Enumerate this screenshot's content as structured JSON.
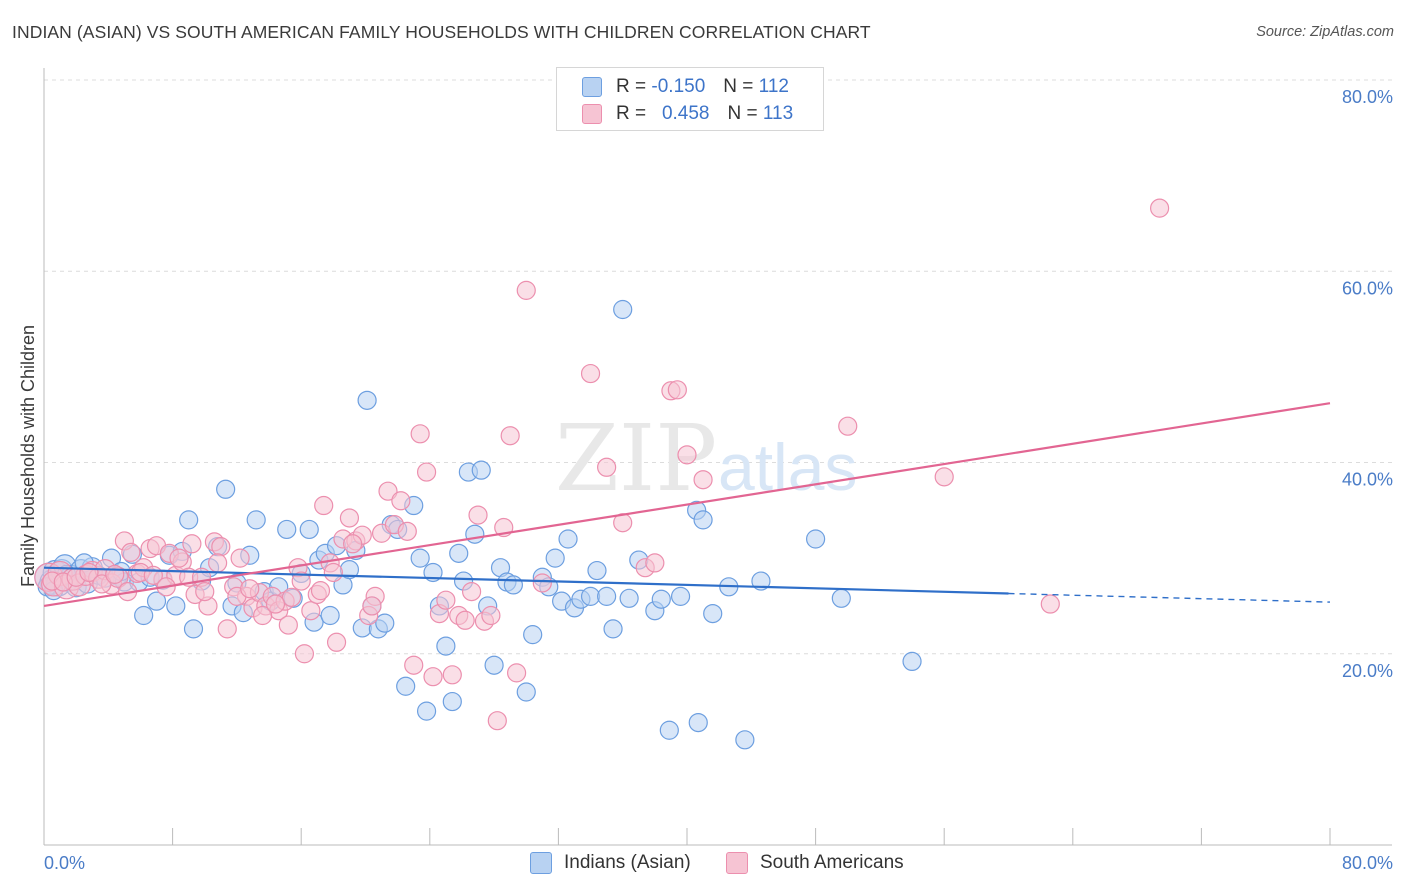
{
  "title": "INDIAN (ASIAN) VS SOUTH AMERICAN FAMILY HOUSEHOLDS WITH CHILDREN CORRELATION CHART",
  "source": "Source: ZipAtlas.com",
  "watermark": "ZIPatlas",
  "legend": {
    "rows": [
      {
        "r_label": "R = ",
        "r_value": "-0.150",
        "n_label": "N = ",
        "n_value": "112"
      },
      {
        "r_label": "R = ",
        "r_value": "0.458",
        "n_label": "N = ",
        "n_value": "113"
      }
    ]
  },
  "bottom_legend": {
    "series1": "Indians (Asian)",
    "series2": "South Americans"
  },
  "colors": {
    "blue_fill": "#b8d2f2",
    "blue_stroke": "#6d9fe0",
    "blue_line": "#2f6fc9",
    "pink_fill": "#f6c4d3",
    "pink_stroke": "#ec8fae",
    "pink_line": "#e26592",
    "tick_text": "#4a7cc7",
    "grid": "#dcdcdc"
  },
  "chart_data": {
    "type": "scatter",
    "xlabel": "",
    "ylabel": "Family Households with Children",
    "xlim": [
      0,
      80
    ],
    "ylim": [
      0,
      80
    ],
    "x_tick_labels": [
      "0.0%",
      "80.0%"
    ],
    "y_tick_labels": [
      "20.0%",
      "40.0%",
      "60.0%",
      "80.0%"
    ],
    "y_ticks": [
      20,
      40,
      60,
      80
    ],
    "grid": "horizontal dashed",
    "series": [
      {
        "name": "Indians (Asian)",
        "color": "#6d9fe0",
        "trend": {
          "x0": 0,
          "y0": 29.0,
          "x1": 60,
          "y1": 26.3,
          "dashed_to": 80,
          "dashed_y": 25.4
        },
        "points": [
          [
            0.3,
            28.0
          ],
          [
            0.5,
            27.5
          ],
          [
            0.7,
            28.5
          ],
          [
            0.9,
            27.3
          ],
          [
            1.1,
            28.7
          ],
          [
            1.3,
            29.2
          ],
          [
            1.5,
            27.6
          ],
          [
            1.7,
            28.2
          ],
          [
            2.0,
            27.0
          ],
          [
            2.3,
            28.8
          ],
          [
            2.7,
            27.4
          ],
          [
            3.0,
            29.0
          ],
          [
            3.4,
            28.2
          ],
          [
            3.8,
            27.9
          ],
          [
            4.2,
            30.0
          ],
          [
            4.6,
            28.1
          ],
          [
            5.0,
            27.5
          ],
          [
            5.5,
            30.4
          ],
          [
            5.9,
            27.5
          ],
          [
            6.2,
            24.0
          ],
          [
            6.6,
            28.0
          ],
          [
            7.0,
            25.5
          ],
          [
            7.4,
            27.7
          ],
          [
            7.8,
            30.3
          ],
          [
            8.2,
            25.0
          ],
          [
            8.6,
            30.7
          ],
          [
            9.0,
            34.0
          ],
          [
            9.3,
            22.6
          ],
          [
            9.8,
            27.6
          ],
          [
            10.3,
            29.0
          ],
          [
            10.8,
            31.2
          ],
          [
            11.3,
            37.2
          ],
          [
            11.7,
            25.0
          ],
          [
            12.0,
            27.4
          ],
          [
            12.4,
            24.3
          ],
          [
            12.8,
            30.3
          ],
          [
            13.2,
            34.0
          ],
          [
            13.7,
            26.5
          ],
          [
            14.1,
            25.5
          ],
          [
            14.6,
            27.0
          ],
          [
            15.1,
            33.0
          ],
          [
            15.5,
            25.8
          ],
          [
            16.0,
            28.4
          ],
          [
            16.5,
            33.0
          ],
          [
            16.8,
            23.3
          ],
          [
            17.1,
            29.8
          ],
          [
            17.5,
            30.5
          ],
          [
            17.8,
            24.0
          ],
          [
            18.2,
            31.3
          ],
          [
            18.6,
            27.2
          ],
          [
            19.0,
            28.8
          ],
          [
            19.4,
            30.8
          ],
          [
            19.8,
            22.7
          ],
          [
            20.1,
            46.5
          ],
          [
            20.4,
            25.0
          ],
          [
            20.8,
            22.6
          ],
          [
            21.2,
            23.2
          ],
          [
            21.6,
            33.5
          ],
          [
            22.0,
            33.0
          ],
          [
            22.5,
            16.6
          ],
          [
            23.0,
            35.5
          ],
          [
            23.4,
            30.0
          ],
          [
            23.8,
            14.0
          ],
          [
            24.2,
            28.5
          ],
          [
            24.6,
            25.0
          ],
          [
            25.0,
            20.8
          ],
          [
            25.4,
            15.0
          ],
          [
            25.8,
            30.5
          ],
          [
            26.1,
            27.6
          ],
          [
            26.4,
            39.0
          ],
          [
            26.8,
            32.5
          ],
          [
            27.2,
            39.2
          ],
          [
            27.6,
            25.0
          ],
          [
            28.0,
            18.8
          ],
          [
            28.4,
            29.0
          ],
          [
            28.8,
            27.5
          ],
          [
            29.2,
            27.2
          ],
          [
            30.0,
            16.0
          ],
          [
            30.4,
            22.0
          ],
          [
            31.0,
            28.0
          ],
          [
            31.4,
            27.0
          ],
          [
            31.8,
            30.0
          ],
          [
            32.2,
            25.5
          ],
          [
            32.6,
            32.0
          ],
          [
            33.0,
            24.8
          ],
          [
            33.4,
            25.7
          ],
          [
            34.0,
            26.0
          ],
          [
            34.4,
            28.7
          ],
          [
            35.0,
            26.0
          ],
          [
            35.4,
            22.6
          ],
          [
            36.0,
            56.0
          ],
          [
            36.4,
            25.8
          ],
          [
            37.0,
            29.8
          ],
          [
            38.0,
            24.5
          ],
          [
            38.4,
            25.7
          ],
          [
            38.9,
            12.0
          ],
          [
            39.6,
            26.0
          ],
          [
            40.6,
            35.0
          ],
          [
            40.7,
            12.8
          ],
          [
            41.0,
            34.0
          ],
          [
            41.6,
            24.2
          ],
          [
            42.6,
            27.0
          ],
          [
            43.6,
            11.0
          ],
          [
            44.6,
            27.6
          ],
          [
            48.0,
            32.0
          ],
          [
            49.6,
            25.8
          ],
          [
            54.0,
            19.2
          ],
          [
            0.2,
            27.0
          ],
          [
            0.6,
            26.6
          ],
          [
            1.4,
            28.3
          ],
          [
            2.5,
            29.5
          ],
          [
            4.8,
            28.6
          ]
        ],
        "sizes": [
          14,
          12,
          12,
          12,
          11,
          11,
          10,
          10,
          10,
          10,
          10,
          10,
          9,
          9,
          9,
          9,
          9,
          9,
          9,
          9,
          9,
          9,
          9,
          9,
          9,
          9,
          9,
          9,
          9,
          9,
          9,
          9,
          9,
          9,
          9,
          9,
          9,
          9,
          9,
          9,
          9,
          9,
          9,
          9,
          9,
          9,
          9,
          9,
          9,
          9,
          9,
          9,
          9,
          9,
          9,
          9,
          9,
          9,
          9,
          9,
          9,
          9,
          9,
          9,
          9,
          9,
          9,
          9,
          9,
          9,
          9,
          9,
          9,
          9,
          9,
          9,
          9,
          9,
          9,
          9,
          9,
          9,
          9,
          9,
          9,
          9,
          9,
          9,
          9,
          9,
          9,
          9,
          9,
          9,
          9,
          9,
          9,
          9,
          9,
          9,
          9,
          9,
          9,
          9,
          9,
          9,
          9,
          9,
          9,
          9,
          9,
          9
        ]
      },
      {
        "name": "South Americans",
        "color": "#ec8fae",
        "trend": {
          "x0": 0,
          "y0": 25.0,
          "x1": 80,
          "y1": 46.2
        },
        "points": [
          [
            0.3,
            28.0
          ],
          [
            0.6,
            27.3
          ],
          [
            1.0,
            28.4
          ],
          [
            1.4,
            27.0
          ],
          [
            1.8,
            27.8
          ],
          [
            2.2,
            27.2
          ],
          [
            2.6,
            28.2
          ],
          [
            3.0,
            28.6
          ],
          [
            3.4,
            27.9
          ],
          [
            3.8,
            28.8
          ],
          [
            4.2,
            27.3
          ],
          [
            4.6,
            28.0
          ],
          [
            5.0,
            31.8
          ],
          [
            5.4,
            30.6
          ],
          [
            5.8,
            28.4
          ],
          [
            6.2,
            29.0
          ],
          [
            6.6,
            31.0
          ],
          [
            7.0,
            31.3
          ],
          [
            7.4,
            27.8
          ],
          [
            7.8,
            30.5
          ],
          [
            8.2,
            28.2
          ],
          [
            8.6,
            29.6
          ],
          [
            9.0,
            28.0
          ],
          [
            9.4,
            26.2
          ],
          [
            9.8,
            28.0
          ],
          [
            10.2,
            25.0
          ],
          [
            10.6,
            31.7
          ],
          [
            11.0,
            31.2
          ],
          [
            11.4,
            22.6
          ],
          [
            11.8,
            27.0
          ],
          [
            12.2,
            30.0
          ],
          [
            12.6,
            26.0
          ],
          [
            13.0,
            24.8
          ],
          [
            13.4,
            26.4
          ],
          [
            13.8,
            25.0
          ],
          [
            14.2,
            26.0
          ],
          [
            14.6,
            24.5
          ],
          [
            15.0,
            25.5
          ],
          [
            15.4,
            25.9
          ],
          [
            15.8,
            29.0
          ],
          [
            16.2,
            20.0
          ],
          [
            16.6,
            24.5
          ],
          [
            17.0,
            26.2
          ],
          [
            17.4,
            35.5
          ],
          [
            17.8,
            29.5
          ],
          [
            18.2,
            21.2
          ],
          [
            18.6,
            32.0
          ],
          [
            19.0,
            34.2
          ],
          [
            19.4,
            31.8
          ],
          [
            19.8,
            32.4
          ],
          [
            20.2,
            24.0
          ],
          [
            20.6,
            26.0
          ],
          [
            21.0,
            32.6
          ],
          [
            21.4,
            37.0
          ],
          [
            21.8,
            33.5
          ],
          [
            22.2,
            36.0
          ],
          [
            22.6,
            32.8
          ],
          [
            23.0,
            18.8
          ],
          [
            23.4,
            43.0
          ],
          [
            23.8,
            39.0
          ],
          [
            24.2,
            17.6
          ],
          [
            24.6,
            24.2
          ],
          [
            25.0,
            25.6
          ],
          [
            25.4,
            17.8
          ],
          [
            25.8,
            24.0
          ],
          [
            26.2,
            23.5
          ],
          [
            26.6,
            26.5
          ],
          [
            27.0,
            34.5
          ],
          [
            27.4,
            23.4
          ],
          [
            27.8,
            24.0
          ],
          [
            28.2,
            13.0
          ],
          [
            28.6,
            33.2
          ],
          [
            29.0,
            42.8
          ],
          [
            29.4,
            18.0
          ],
          [
            30.0,
            58.0
          ],
          [
            31.0,
            27.4
          ],
          [
            34.0,
            49.3
          ],
          [
            35.0,
            39.5
          ],
          [
            36.0,
            33.7
          ],
          [
            37.4,
            29.0
          ],
          [
            38.0,
            29.5
          ],
          [
            39.0,
            47.5
          ],
          [
            39.4,
            47.6
          ],
          [
            40.0,
            40.8
          ],
          [
            41.0,
            38.2
          ],
          [
            50.0,
            43.8
          ],
          [
            56.0,
            38.5
          ],
          [
            62.6,
            25.2
          ],
          [
            69.4,
            66.6
          ],
          [
            0.5,
            27.6
          ],
          [
            1.2,
            27.5
          ],
          [
            2.0,
            28.0
          ],
          [
            2.8,
            28.5
          ],
          [
            3.6,
            27.3
          ],
          [
            4.4,
            28.3
          ],
          [
            5.2,
            26.5
          ],
          [
            6.0,
            28.5
          ],
          [
            6.8,
            28.2
          ],
          [
            7.6,
            27.0
          ],
          [
            8.4,
            30.0
          ],
          [
            9.2,
            31.5
          ],
          [
            10.0,
            26.5
          ],
          [
            10.8,
            29.5
          ],
          [
            12.0,
            26.0
          ],
          [
            12.8,
            26.8
          ],
          [
            13.6,
            24.0
          ],
          [
            14.4,
            25.2
          ],
          [
            15.2,
            23.0
          ],
          [
            16.0,
            27.6
          ],
          [
            17.2,
            26.6
          ],
          [
            18.0,
            28.5
          ],
          [
            19.2,
            31.5
          ],
          [
            20.4,
            25.0
          ]
        ],
        "sizes": [
          14,
          12,
          12,
          12,
          11,
          11,
          10,
          10,
          10,
          10,
          10,
          10,
          9,
          9,
          9,
          9,
          9,
          9,
          9,
          9,
          9,
          9,
          9,
          9,
          9,
          9,
          9,
          9,
          9,
          9,
          9,
          9,
          9,
          9,
          9,
          9,
          9,
          9,
          9,
          9,
          9,
          9,
          9,
          9,
          9,
          9,
          9,
          9,
          9,
          9,
          9,
          9,
          9,
          9,
          9,
          9,
          9,
          9,
          9,
          9,
          9,
          9,
          9,
          9,
          9,
          9,
          9,
          9,
          9,
          9,
          9,
          9,
          9,
          9,
          9,
          9,
          9,
          9,
          9,
          9,
          9,
          9,
          9,
          9,
          9,
          9,
          9,
          9,
          9,
          9,
          9,
          9,
          9,
          9,
          9,
          9,
          9,
          9,
          9,
          9,
          9,
          9,
          9,
          9,
          9,
          9,
          9,
          9,
          9,
          9,
          9,
          9,
          9
        ]
      }
    ]
  }
}
